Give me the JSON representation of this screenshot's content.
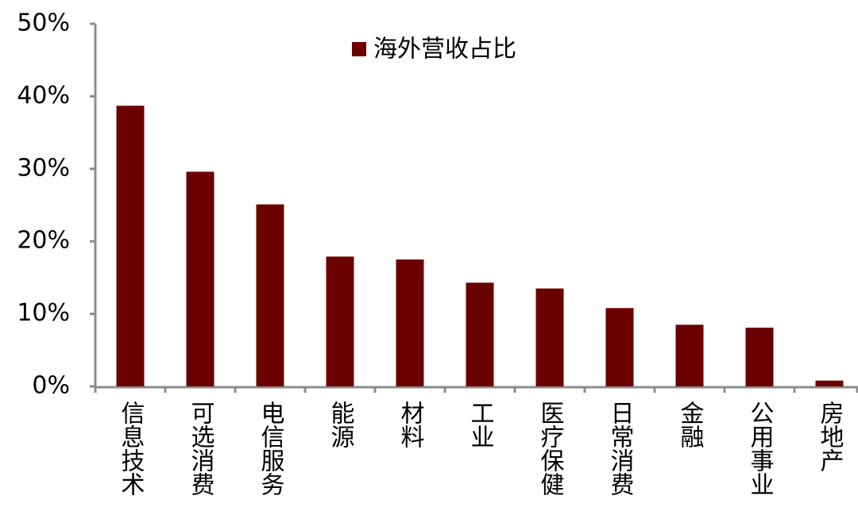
{
  "chart_data": {
    "type": "bar",
    "categories": [
      "信息技术",
      "可选消费",
      "电信服务",
      "能源",
      "材料",
      "工业",
      "医疗保健",
      "日常消费",
      "金融",
      "公用事业",
      "房地产"
    ],
    "series": [
      {
        "name": "海外营收占比",
        "color": "#6b0000",
        "values": [
          38.7,
          29.6,
          25.1,
          17.9,
          17.5,
          14.3,
          13.5,
          10.8,
          8.5,
          8.1,
          0.8
        ]
      }
    ],
    "ylim": [
      0,
      50
    ],
    "yticks": [
      {
        "value": 0,
        "label": "0%"
      },
      {
        "value": 10,
        "label": "10%"
      },
      {
        "value": 20,
        "label": "20%"
      },
      {
        "value": 30,
        "label": "30%"
      },
      {
        "value": 40,
        "label": "40%"
      },
      {
        "value": 50,
        "label": "50%"
      }
    ],
    "legend": "top"
  }
}
